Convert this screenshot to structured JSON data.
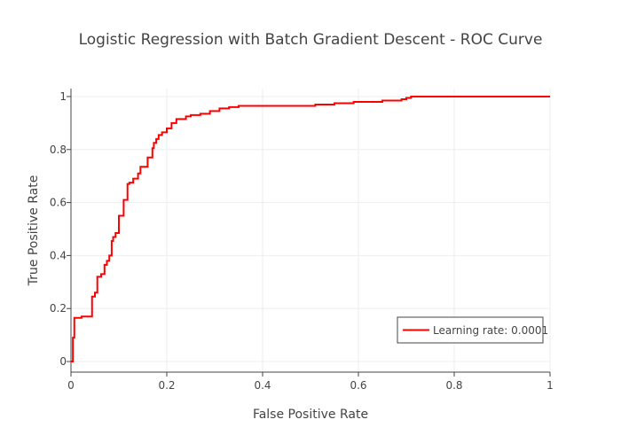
{
  "chart_data": {
    "type": "line",
    "title": "Logistic Regression with Batch Gradient Descent - ROC Curve",
    "xlabel": "False Positive Rate",
    "ylabel": "True Positive Rate",
    "xlim": [
      0,
      1
    ],
    "ylim": [
      -0.04,
      1.03
    ],
    "x_ticks": [
      0,
      0.2,
      0.4,
      0.6,
      0.8,
      1
    ],
    "x_tick_labels": [
      "0",
      "0.2",
      "0.4",
      "0.6",
      "0.8",
      "1"
    ],
    "y_ticks": [
      0,
      0.2,
      0.4,
      0.6,
      0.8,
      1
    ],
    "y_tick_labels": [
      "0",
      "0.2",
      "0.4",
      "0.6",
      "0.8",
      "1"
    ],
    "grid": true,
    "legend": {
      "position": "bottom-right"
    },
    "series": [
      {
        "name": "Learning rate: 0.0001",
        "color": "#ff0000",
        "step": true,
        "x": [
          0,
          0.004,
          0.007,
          0.022,
          0.044,
          0.05,
          0.055,
          0.063,
          0.07,
          0.075,
          0.08,
          0.085,
          0.088,
          0.093,
          0.1,
          0.11,
          0.118,
          0.122,
          0.13,
          0.14,
          0.145,
          0.15,
          0.16,
          0.17,
          0.173,
          0.178,
          0.183,
          0.19,
          0.2,
          0.21,
          0.22,
          0.24,
          0.25,
          0.27,
          0.29,
          0.31,
          0.33,
          0.35,
          0.4,
          0.45,
          0.51,
          0.55,
          0.59,
          0.65,
          0.69,
          0.7,
          0.71,
          0.75,
          0.8,
          0.9,
          1
        ],
        "y": [
          0,
          0.09,
          0.165,
          0.17,
          0.245,
          0.26,
          0.32,
          0.33,
          0.365,
          0.38,
          0.4,
          0.455,
          0.47,
          0.485,
          0.55,
          0.61,
          0.67,
          0.675,
          0.69,
          0.71,
          0.735,
          0.735,
          0.77,
          0.805,
          0.825,
          0.84,
          0.855,
          0.865,
          0.88,
          0.9,
          0.915,
          0.925,
          0.93,
          0.935,
          0.945,
          0.955,
          0.96,
          0.965,
          0.965,
          0.965,
          0.97,
          0.975,
          0.98,
          0.985,
          0.99,
          0.995,
          1.0,
          1.0,
          1.0,
          1.0,
          1.0
        ]
      }
    ]
  }
}
